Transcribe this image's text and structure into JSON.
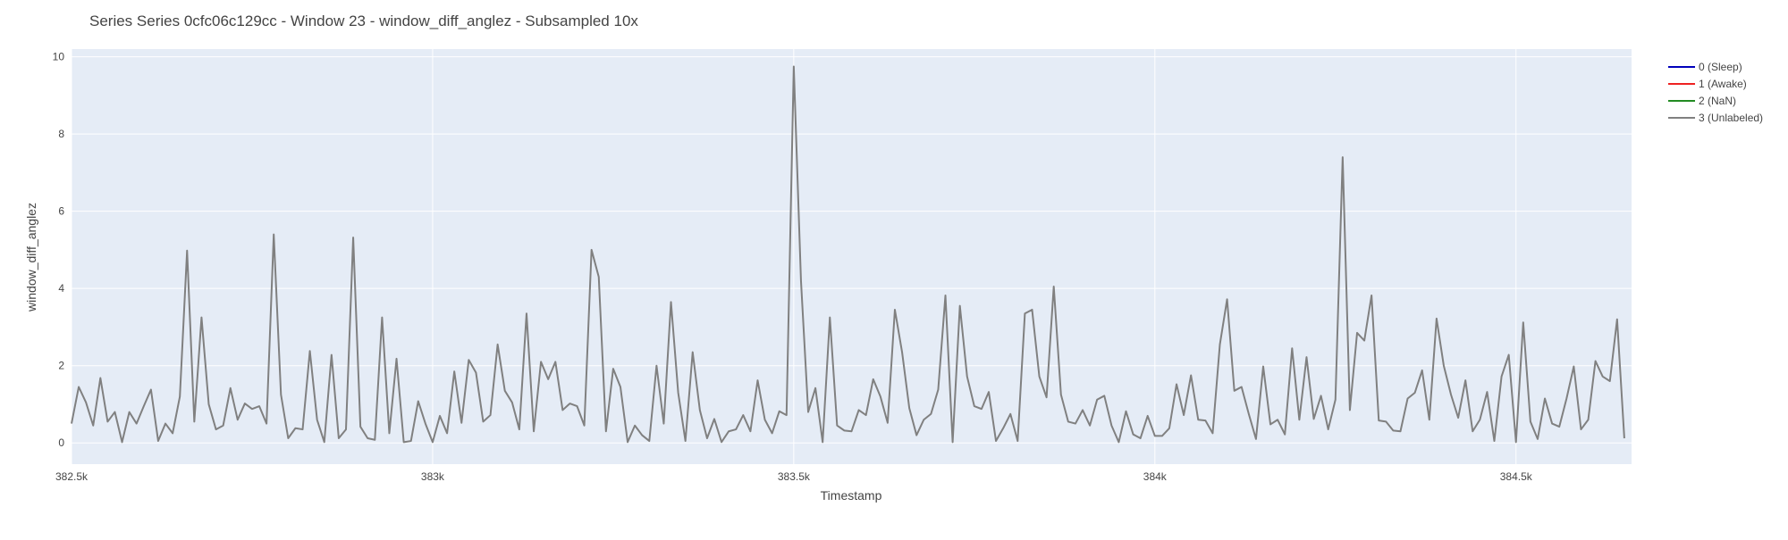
{
  "chart_data": {
    "type": "line",
    "title": "Series Series 0cfc06c129cc - Window 23 - window_diff_anglez - Subsampled 10x",
    "xlabel": "Timestamp",
    "ylabel": "window_diff_anglez",
    "xlim": [
      382500,
      384660
    ],
    "ylim": [
      -0.55,
      10.2
    ],
    "x_ticks": [
      {
        "value": 382500,
        "label": "382.5k"
      },
      {
        "value": 383000,
        "label": "383k"
      },
      {
        "value": 383500,
        "label": "383.5k"
      },
      {
        "value": 384000,
        "label": "384k"
      },
      {
        "value": 384500,
        "label": "384.5k"
      }
    ],
    "y_ticks": [
      {
        "value": 0,
        "label": "0"
      },
      {
        "value": 2,
        "label": "2"
      },
      {
        "value": 4,
        "label": "4"
      },
      {
        "value": 6,
        "label": "6"
      },
      {
        "value": 8,
        "label": "8"
      },
      {
        "value": 10,
        "label": "10"
      }
    ],
    "grid": true,
    "legend_position": "top-right",
    "plot_background": "#e5ecf6",
    "series": [
      {
        "name": "0 (Sleep)",
        "color": "#0000bb",
        "x": [],
        "y": []
      },
      {
        "name": "1 (Awake)",
        "color": "#ee2222",
        "x": [],
        "y": []
      },
      {
        "name": "2 (NaN)",
        "color": "#228b22",
        "x": [],
        "y": []
      },
      {
        "name": "3 (Unlabeled)",
        "color": "#808080",
        "x0": 382500,
        "dx": 10,
        "y": [
          0.5,
          1.45,
          1.05,
          0.45,
          1.68,
          0.55,
          0.8,
          0.02,
          0.8,
          0.5,
          0.95,
          1.38,
          0.05,
          0.5,
          0.25,
          1.2,
          4.98,
          0.55,
          3.25,
          1.0,
          0.35,
          0.45,
          1.42,
          0.6,
          1.02,
          0.88,
          0.95,
          0.5,
          5.4,
          1.25,
          0.12,
          0.38,
          0.35,
          2.38,
          0.6,
          0.02,
          2.28,
          0.12,
          0.35,
          5.32,
          0.42,
          0.12,
          0.08,
          3.25,
          0.25,
          2.18,
          0.02,
          0.05,
          1.08,
          0.5,
          0.02,
          0.7,
          0.25,
          1.85,
          0.52,
          2.15,
          1.82,
          0.55,
          0.72,
          2.55,
          1.35,
          1.05,
          0.35,
          3.35,
          0.3,
          2.1,
          1.65,
          2.1,
          0.85,
          1.02,
          0.95,
          0.45,
          5.0,
          4.3,
          0.3,
          1.92,
          1.45,
          0.02,
          0.45,
          0.2,
          0.05,
          2.0,
          0.5,
          3.65,
          1.3,
          0.05,
          2.35,
          0.85,
          0.12,
          0.62,
          0.02,
          0.3,
          0.35,
          0.72,
          0.3,
          1.62,
          0.6,
          0.25,
          0.82,
          0.72,
          9.75,
          4.2,
          0.8,
          1.42,
          0.02,
          3.25,
          0.45,
          0.32,
          0.3,
          0.85,
          0.72,
          1.65,
          1.2,
          0.52,
          3.45,
          2.35,
          0.9,
          0.2,
          0.6,
          0.75,
          1.38,
          3.82,
          0.02,
          3.55,
          1.72,
          0.95,
          0.88,
          1.32,
          0.05,
          0.38,
          0.75,
          0.05,
          3.35,
          3.45,
          1.72,
          1.18,
          4.05,
          1.25,
          0.55,
          0.5,
          0.85,
          0.45,
          1.12,
          1.22,
          0.45,
          0.02,
          0.82,
          0.22,
          0.12,
          0.7,
          0.18,
          0.18,
          0.38,
          1.52,
          0.72,
          1.75,
          0.6,
          0.58,
          0.25,
          2.55,
          3.72,
          1.35,
          1.45,
          0.75,
          0.1,
          1.98,
          0.48,
          0.6,
          0.22,
          2.45,
          0.6,
          2.22,
          0.62,
          1.22,
          0.35,
          1.12,
          7.4,
          0.85,
          2.85,
          2.65,
          3.82,
          0.58,
          0.55,
          0.32,
          0.3,
          1.15,
          1.3,
          1.88,
          0.6,
          3.22,
          2.0,
          1.25,
          0.65,
          1.62,
          0.3,
          0.6,
          1.32,
          0.05,
          1.72,
          2.28,
          0.02,
          3.12,
          0.55,
          0.1,
          1.15,
          0.5,
          0.42,
          1.15,
          1.98,
          0.35,
          0.6,
          2.12,
          1.72,
          1.6,
          3.2,
          0.12
        ]
      }
    ]
  }
}
